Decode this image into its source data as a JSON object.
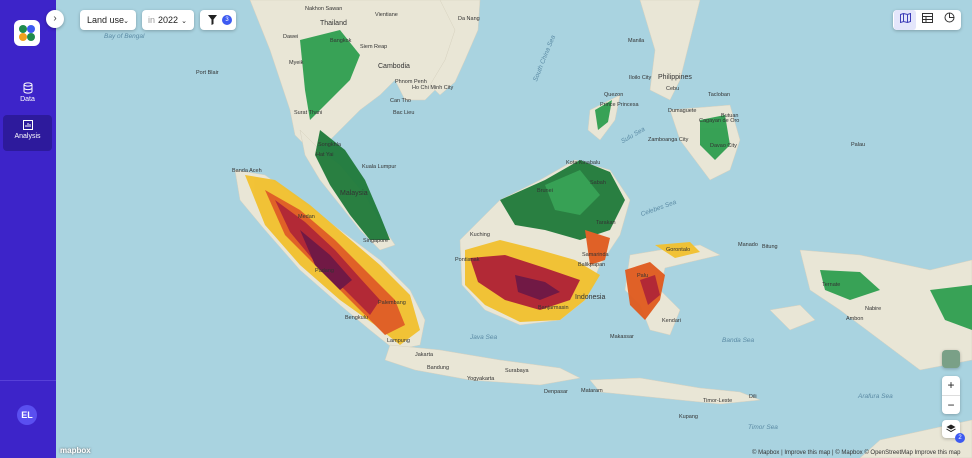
{
  "sidebar": {
    "items": [
      {
        "label": "Data",
        "icon": "database-icon"
      },
      {
        "label": "Analysis",
        "icon": "bar-chart-icon"
      }
    ],
    "avatar_initials": "EL"
  },
  "toolbar": {
    "layer_select": "Land use",
    "year_prefix": "in",
    "year": "2022",
    "filter_count": "3"
  },
  "view_toggle": [
    "map-icon",
    "table-icon",
    "pie-chart-icon"
  ],
  "controls": {
    "zoom_in": "+",
    "zoom_out": "−",
    "layers_badge": "2"
  },
  "map_labels": {
    "places": [
      "Nakhon Sawan",
      "Thailand",
      "Vientiane",
      "Da Nang",
      "Dawei",
      "Bangkok",
      "Siem Reap",
      "Cambodia",
      "Phnom Penh",
      "Ho Chi Minh City",
      "Can Tho",
      "Bac Lieu",
      "Myeik",
      "Port Blair",
      "Surat Thani",
      "Songkhla",
      "Hat Yai",
      "Kuala Lumpur",
      "Malaysia",
      "Singapore",
      "Banda Aceh",
      "Medan",
      "Padang",
      "Palembang",
      "Bengkulu",
      "Lampung",
      "Jakarta",
      "Bandung",
      "Yogyakarta",
      "Surabaya",
      "Kuching",
      "Brunei",
      "Kota Kinabalu",
      "Sabah",
      "Tarakan",
      "Samarinda",
      "Balikpapan",
      "Banjarmasin",
      "Indonesia",
      "Pontianak",
      "Makassar",
      "Palu",
      "Gorontalo",
      "Manado",
      "Ternate",
      "Bitung",
      "Ambon",
      "Kendari",
      "Timor-Leste",
      "Kupang",
      "Denpasar",
      "Mataram",
      "Dili",
      "Nabire",
      "Philippines",
      "Manila",
      "Zamboanga City",
      "Iloilo City",
      "Cebu",
      "Davao City",
      "Palau",
      "Prince Princesa",
      "Quezon",
      "Dumaguete",
      "Tacloban",
      "Cagayan de Oro",
      "Butuan"
    ],
    "seas": [
      "Bay of Bengal",
      "South China Sea",
      "Sulu Sea",
      "Celebes Sea",
      "Java Sea",
      "Banda Sea",
      "Arafura Sea",
      "Timor Sea"
    ]
  },
  "attribution": {
    "mapbox_logo": "mapbox",
    "text": "© Mapbox | Improve this map | © Mapbox © OpenStreetMap Improve this map"
  },
  "palette": {
    "sidebar": "#3d24c9",
    "forest": "#2e9e4f",
    "dense_forest": "#1f7a3a",
    "cropland": "#f2c12e",
    "plantation": "#e05a1e",
    "deforestation": "#b01f2e",
    "severe": "#6b0f3e",
    "water": "#a9d3e0",
    "land": "#e9e6d6"
  }
}
